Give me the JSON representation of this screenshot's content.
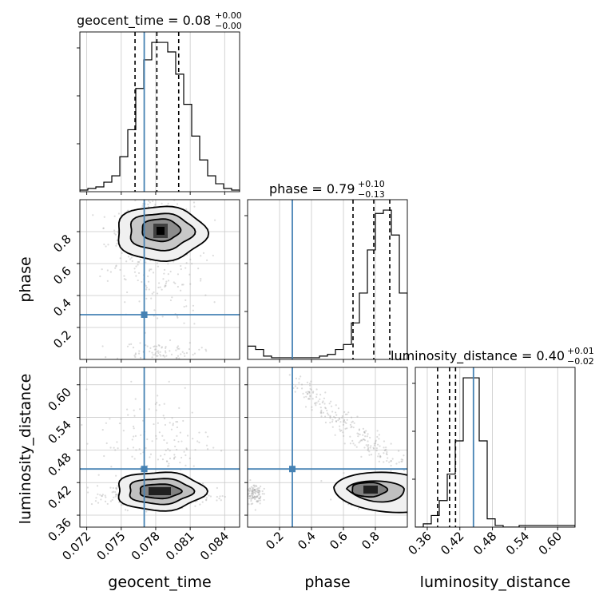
{
  "chart_data": {
    "type": "corner",
    "parameters": [
      "geocent_time",
      "phase",
      "luminosity_distance"
    ],
    "colors": {
      "truth": "#4682b4",
      "hist": "#000000",
      "grid": "#c8c8c8",
      "scatter": "#9a9a9a"
    },
    "truths": {
      "geocent_time": 0.077,
      "phase": 0.28,
      "luminosity_distance": 0.445
    },
    "ranges": {
      "geocent_time": [
        0.0714,
        0.0853
      ],
      "phase": [
        0.0,
        1.0
      ],
      "luminosity_distance": [
        0.338,
        0.632
      ]
    },
    "ticks": {
      "geocent_time": {
        "values": [
          0.072,
          0.075,
          0.078,
          0.081,
          0.084
        ],
        "labels": [
          "0.072",
          "0.075",
          "0.078",
          "0.081",
          "0.084"
        ]
      },
      "phase": {
        "values": [
          0.2,
          0.4,
          0.6,
          0.8
        ],
        "labels": [
          "0.2",
          "0.4",
          "0.6",
          "0.8"
        ]
      },
      "luminosity_distance": {
        "values": [
          0.36,
          0.42,
          0.48,
          0.54,
          0.6
        ],
        "labels": [
          "0.36",
          "0.42",
          "0.48",
          "0.54",
          "0.60"
        ]
      }
    },
    "titles": [
      {
        "param": "geocent_time",
        "main": "geocent_time = 0.08",
        "plus": "+0.00",
        "minus": "−0.00"
      },
      {
        "param": "phase",
        "main": "phase = 0.79",
        "plus": "+0.10",
        "minus": "−0.13"
      },
      {
        "param": "luminosity_distance",
        "main": "luminosity_distance = 0.40",
        "plus": "+0.01",
        "minus": "−0.02"
      }
    ],
    "quantiles": {
      "geocent_time": [
        0.0762,
        0.0781,
        0.08
      ],
      "phase": [
        0.66,
        0.79,
        0.89
      ],
      "luminosity_distance": [
        0.379,
        0.401,
        0.412
      ]
    },
    "histograms": {
      "geocent_time": {
        "edges_range": [
          0.0714,
          0.0853
        ],
        "counts": [
          1,
          2,
          3,
          6,
          10,
          22,
          39,
          65,
          83,
          94,
          94,
          88,
          74,
          55,
          35,
          20,
          10,
          5,
          2,
          1
        ]
      },
      "phase": {
        "edges_range": [
          0.0,
          1.0
        ],
        "counts": [
          8,
          6,
          2,
          1,
          1,
          1,
          1,
          1,
          1,
          2,
          3,
          6,
          9,
          22,
          40,
          66,
          88,
          90,
          75,
          40
        ]
      },
      "luminosity_distance": {
        "edges_range": [
          0.338,
          0.632
        ],
        "counts": [
          0,
          2,
          7,
          16,
          32,
          52,
          90,
          90,
          52,
          5,
          1,
          0,
          0,
          1,
          1,
          1,
          1,
          1,
          1,
          1
        ]
      }
    }
  }
}
